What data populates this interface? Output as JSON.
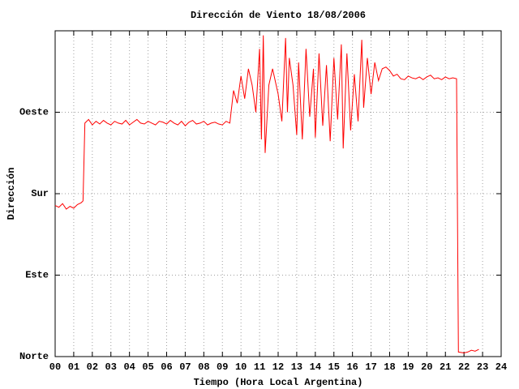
{
  "chart_data": {
    "type": "line",
    "title": "Dirección de Viento 18/08/2006",
    "xlabel": "Tiempo (Hora Local Argentina)",
    "ylabel": "Dirección",
    "color": "#ff0000",
    "grid": true,
    "xlim": [
      0,
      24
    ],
    "xticks": [
      {
        "value": 0,
        "label": "00"
      },
      {
        "value": 1,
        "label": "01"
      },
      {
        "value": 2,
        "label": "02"
      },
      {
        "value": 3,
        "label": "03"
      },
      {
        "value": 4,
        "label": "04"
      },
      {
        "value": 5,
        "label": "05"
      },
      {
        "value": 6,
        "label": "06"
      },
      {
        "value": 7,
        "label": "07"
      },
      {
        "value": 8,
        "label": "08"
      },
      {
        "value": 9,
        "label": "09"
      },
      10,
      11,
      12,
      13,
      14,
      15,
      16,
      17,
      18,
      19,
      20,
      21,
      22,
      23,
      24
    ],
    "ylim": [
      0,
      360
    ],
    "yticks": [
      {
        "value": 0,
        "label": "Norte"
      },
      {
        "value": 90,
        "label": "Este"
      },
      {
        "value": 180,
        "label": "Sur"
      },
      {
        "value": 270,
        "label": "Oeste"
      }
    ],
    "x": [
      0.0,
      0.2,
      0.4,
      0.6,
      0.8,
      1.0,
      1.2,
      1.4,
      1.5,
      1.6,
      1.8,
      2.0,
      2.2,
      2.4,
      2.6,
      2.8,
      3.0,
      3.2,
      3.4,
      3.6,
      3.8,
      4.0,
      4.2,
      4.4,
      4.6,
      4.8,
      5.0,
      5.2,
      5.4,
      5.6,
      5.8,
      6.0,
      6.2,
      6.4,
      6.6,
      6.8,
      7.0,
      7.2,
      7.4,
      7.6,
      7.8,
      8.0,
      8.2,
      8.4,
      8.6,
      8.8,
      9.0,
      9.2,
      9.4,
      9.6,
      9.8,
      10.0,
      10.2,
      10.4,
      10.6,
      10.8,
      11.0,
      11.1,
      11.2,
      11.3,
      11.5,
      11.7,
      12.0,
      12.2,
      12.4,
      12.5,
      12.6,
      12.8,
      13.0,
      13.1,
      13.3,
      13.5,
      13.7,
      13.9,
      14.0,
      14.2,
      14.4,
      14.6,
      14.8,
      15.0,
      15.2,
      15.4,
      15.5,
      15.7,
      15.9,
      16.1,
      16.3,
      16.5,
      16.6,
      16.8,
      17.0,
      17.2,
      17.4,
      17.6,
      17.8,
      18.0,
      18.2,
      18.4,
      18.6,
      18.8,
      19.0,
      19.2,
      19.4,
      19.6,
      19.8,
      20.0,
      20.2,
      20.4,
      20.6,
      20.8,
      21.0,
      21.2,
      21.4,
      21.6,
      21.7,
      22.0,
      22.2,
      22.4,
      22.6,
      22.8
    ],
    "values": [
      167,
      165,
      169,
      163,
      166,
      164,
      168,
      170,
      172,
      258,
      262,
      256,
      260,
      257,
      261,
      258,
      256,
      260,
      258,
      257,
      261,
      256,
      259,
      262,
      258,
      257,
      260,
      258,
      256,
      260,
      259,
      257,
      261,
      258,
      256,
      260,
      255,
      259,
      261,
      257,
      258,
      260,
      256,
      258,
      259,
      257,
      256,
      260,
      258,
      294,
      280,
      310,
      285,
      318,
      300,
      270,
      340,
      240,
      355,
      225,
      300,
      318,
      290,
      260,
      352,
      270,
      330,
      300,
      245,
      325,
      240,
      340,
      265,
      318,
      242,
      335,
      255,
      322,
      238,
      330,
      262,
      345,
      230,
      335,
      250,
      312,
      260,
      350,
      275,
      330,
      290,
      325,
      305,
      318,
      320,
      316,
      310,
      312,
      307,
      306,
      310,
      308,
      307,
      309,
      306,
      309,
      311,
      307,
      308,
      306,
      309,
      307,
      308,
      307,
      5,
      4,
      5,
      7,
      6,
      8
    ]
  }
}
